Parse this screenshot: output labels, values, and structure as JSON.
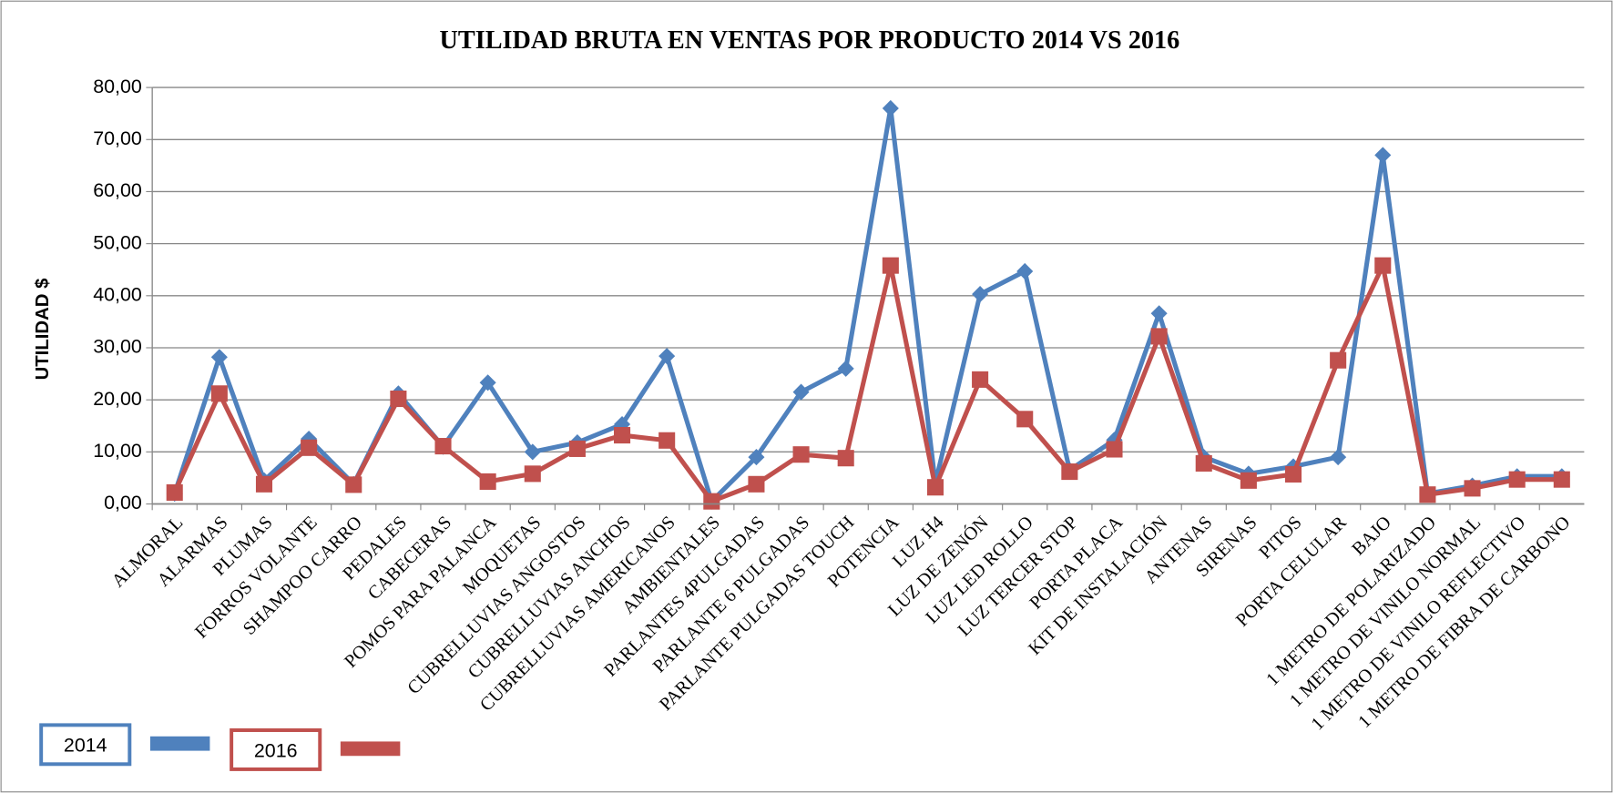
{
  "chart_data": {
    "type": "line",
    "title": "UTILIDAD BRUTA EN VENTAS POR PRODUCTO 2014 VS 2016",
    "ylabel": "UTILIDAD $",
    "categories": [
      "ALMORAL",
      "ALARMAS",
      "PLUMAS",
      "FORROS VOLANTE",
      "SHAMPOO CARRO",
      "PEDALES",
      "CABECERAS",
      "POMOS PARA PALANCA",
      "MOQUETAS",
      "CUBRELLUVIAS ANGOSTOS",
      "CUBRELLUVIAS ANCHOS",
      "CUBRELLUVIAS AMERICANOS",
      "AMBIENTALES",
      "PARLANTES 4PULGADAS",
      "PARLANTE 6 PULGADAS",
      "PARLANTE  PULGADAS TOUCH",
      "POTENCIA",
      "LUZ H4",
      "LUZ DE ZENÓN",
      "LUZ LED ROLLO",
      "LUZ TERCER STOP",
      "PORTA PLACA",
      "KIT DE INSTALACIÓN",
      "ANTENAS",
      "SIRENAS",
      "PITOS",
      "PORTA CELULAR",
      "BAJO",
      "1  METRO DE POLARIZADO",
      "1 METRO DE VINILO NORMAL",
      "1 METRO DE VINILO REFLECTIVO",
      "1 METRO DE FIBRA DE CARBONO"
    ],
    "series": [
      {
        "name": "2014",
        "color": "#4f81bd",
        "marker": "diamond",
        "values": [
          2.0,
          28.2,
          4.5,
          12.5,
          3.8,
          21.2,
          11.0,
          23.3,
          10.0,
          11.8,
          15.3,
          28.4,
          0.5,
          9.0,
          21.5,
          26.0,
          76.0,
          4.0,
          40.3,
          44.7,
          6.5,
          12.3,
          36.6,
          9.0,
          5.8,
          7.2,
          9.0,
          67.0,
          2.0,
          3.5,
          5.3,
          5.3
        ]
      },
      {
        "name": "2016",
        "color": "#c0504d",
        "marker": "square",
        "values": [
          2.2,
          21.2,
          3.8,
          10.8,
          3.7,
          20.2,
          11.1,
          4.3,
          5.8,
          10.6,
          13.2,
          12.2,
          0.5,
          3.8,
          9.5,
          8.8,
          45.8,
          3.2,
          23.9,
          16.3,
          6.2,
          10.5,
          32.2,
          7.8,
          4.5,
          5.7,
          27.6,
          45.8,
          1.8,
          3.0,
          4.7,
          4.7
        ]
      }
    ],
    "ylim": [
      0,
      80
    ],
    "yticks": [
      {
        "value": 0,
        "label": "0,00"
      },
      {
        "value": 10,
        "label": "10,00"
      },
      {
        "value": 20,
        "label": "20,00"
      },
      {
        "value": 30,
        "label": "30,00"
      },
      {
        "value": 40,
        "label": "40,00"
      },
      {
        "value": 50,
        "label": "50,00"
      },
      {
        "value": 60,
        "label": "60,00"
      },
      {
        "value": 70,
        "label": "70,00"
      },
      {
        "value": 80,
        "label": "80,00"
      }
    ],
    "grid": true,
    "legend": "bottom-left"
  }
}
